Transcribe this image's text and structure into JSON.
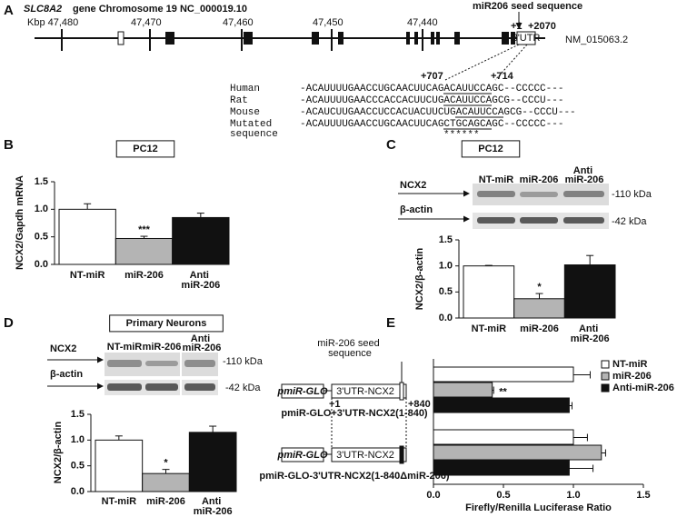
{
  "panel_labels": [
    "A",
    "B",
    "C",
    "D",
    "E"
  ],
  "panel_a": {
    "gene": "SLC8A2",
    "title": "gene Chromosome 19 NC_000019.10",
    "kbp_labels": [
      "Kbp 47,480",
      "47,470",
      "47,460",
      "47,450",
      "47,440"
    ],
    "seed_label": "miR206 seed sequence",
    "utr_start": "+1",
    "utr_end": "+2070",
    "utr_label": "3'UTR",
    "accession": "NM_015063.2",
    "pos_start": "+707",
    "pos_end": "+714",
    "rows": [
      {
        "species": "Human",
        "sequence": "-ACAUUUUGAACCUGCAACUUCAGACAUUCCAGC--CCCCC---"
      },
      {
        "species": "Rat",
        "sequence": "-ACAUUUUGAACCCACCACUUCUGACAUUCCAGCG--CCCU---"
      },
      {
        "species": "Mouse",
        "sequence": "-ACAUCUUGAACCUCCACUACUUCUGACAUUCCAGCG--CCCU---"
      },
      {
        "species": "Mutated sequence",
        "sequence": "-ACAUUUUGAACCUGCAACUUCAGCTGCAGCAGC--CCCCC---"
      }
    ],
    "mutation_marks": "******"
  },
  "blots": [
    {
      "columns": [
        "NT-miR",
        "miR-206",
        "Anti miR-206"
      ],
      "rows": [
        "NCX2",
        "β-actin"
      ],
      "sizes": [
        "-110 kDa",
        "-42 kDa"
      ]
    },
    {
      "columns": [
        "NT-miR",
        "miR-206",
        "Anti miR-206"
      ],
      "rows": [
        "NCX2",
        "β-actin"
      ],
      "sizes": [
        "-110 kDa",
        "-42 kDa"
      ]
    }
  ],
  "panel_e": {
    "seed_label": "miR-206 seed sequence",
    "vector": "pmiR-GLO",
    "insert": "3'UTR-NCX2",
    "start": "+1",
    "end": "+840"
  },
  "chart_data": [
    {
      "type": "bar",
      "title": "PC12",
      "ylabel": "NCX2/Gapdh mRNA",
      "categories": [
        "NT-miR",
        "miR-206",
        "Anti miR-206"
      ],
      "values": [
        1.0,
        0.47,
        0.85
      ],
      "errors": [
        0.1,
        0.04,
        0.08
      ],
      "colors": [
        "#ffffff",
        "#b4b4b4",
        "#111111"
      ],
      "significance": [
        {
          "category": "miR-206",
          "label": "***"
        }
      ],
      "ylim": [
        0,
        1.5
      ],
      "yticks": [
        {
          "value": 0,
          "label": "0.0"
        },
        {
          "value": 0.5,
          "label": "0.5"
        },
        {
          "value": 1,
          "label": "1.0"
        },
        {
          "value": 1.5,
          "label": "1.5"
        }
      ]
    },
    {
      "type": "bar",
      "title": "PC12",
      "ylabel": "NCX2/β-actin",
      "categories": [
        "NT-miR",
        "miR-206",
        "Anti miR-206"
      ],
      "values": [
        1.0,
        0.37,
        1.02
      ],
      "errors": [
        0.01,
        0.1,
        0.18
      ],
      "colors": [
        "#ffffff",
        "#b4b4b4",
        "#111111"
      ],
      "significance": [
        {
          "category": "miR-206",
          "label": "*"
        }
      ],
      "ylim": [
        0,
        1.5
      ],
      "yticks": [
        {
          "value": 0,
          "label": "0.0"
        },
        {
          "value": 0.5,
          "label": "0.5"
        },
        {
          "value": 1,
          "label": "1.0"
        },
        {
          "value": 1.5,
          "label": "1.5"
        }
      ]
    },
    {
      "type": "bar",
      "title": "Primary Neurons",
      "ylabel": "NCX2/β-actin",
      "categories": [
        "NT-miR",
        "miR-206",
        "Anti miR-206"
      ],
      "values": [
        1.0,
        0.35,
        1.15
      ],
      "errors": [
        0.08,
        0.08,
        0.12
      ],
      "colors": [
        "#ffffff",
        "#b4b4b4",
        "#111111"
      ],
      "significance": [
        {
          "category": "miR-206",
          "label": "*"
        }
      ],
      "ylim": [
        0,
        1.5
      ],
      "yticks": [
        {
          "value": 0,
          "label": "0.0"
        },
        {
          "value": 0.5,
          "label": "0.5"
        },
        {
          "value": 1,
          "label": "1.0"
        },
        {
          "value": 1.5,
          "label": "1.5"
        }
      ]
    },
    {
      "type": "barh",
      "xlabel": "Firefly/Renilla Luciferase Ratio",
      "categories": [
        "pmiR-GLO+3'UTR-NCX2(1-840)",
        "pmiR-GLO-3'UTR-NCX2(1-840ΔmiR-206)"
      ],
      "series": [
        {
          "name": "NT-miR",
          "color": "#ffffff",
          "values": [
            1.0,
            1.0
          ],
          "errors": [
            0.12,
            0.1
          ]
        },
        {
          "name": "miR-206",
          "color": "#b4b4b4",
          "values": [
            0.42,
            1.2
          ],
          "errors": [
            0.01,
            0.03
          ]
        },
        {
          "name": "Anti-miR-206",
          "color": "#111111",
          "values": [
            0.97,
            0.97
          ],
          "errors": [
            0.02,
            0.17
          ]
        }
      ],
      "significance": [
        {
          "category": "pmiR-GLO+3'UTR-NCX2(1-840)",
          "series": "miR-206",
          "label": "**"
        }
      ],
      "xlim": [
        0,
        1.5
      ],
      "xticks": [
        {
          "value": 0,
          "label": "0.0"
        },
        {
          "value": 0.5,
          "label": "0.5"
        },
        {
          "value": 1,
          "label": "1.0"
        },
        {
          "value": 1.5,
          "label": "1.5"
        }
      ],
      "legend": "top-right"
    }
  ]
}
